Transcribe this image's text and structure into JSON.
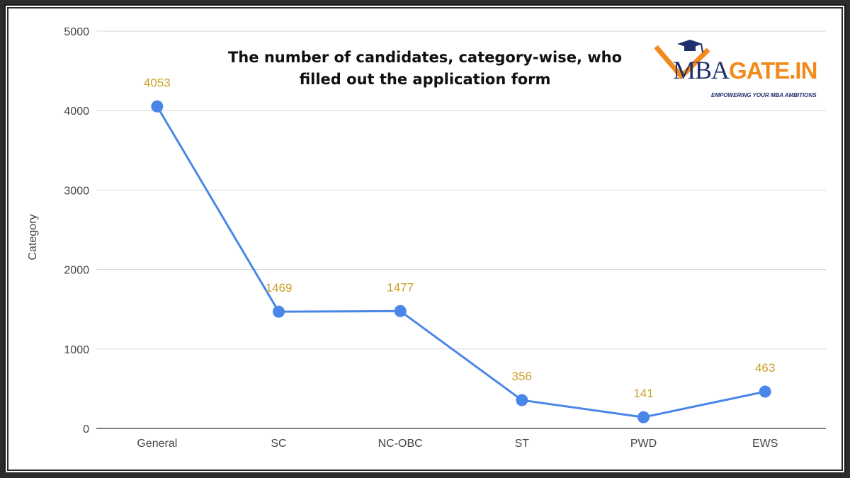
{
  "chart_data": {
    "type": "line",
    "title_line1": "The number of candidates, category-wise, who",
    "title_line2": "filled out the application form",
    "ylabel": "Category",
    "xlabel": "",
    "categories": [
      "General",
      "SC",
      "NC-OBC",
      "ST",
      "PWD",
      "EWS"
    ],
    "values": [
      4053,
      1469,
      1477,
      356,
      141,
      463
    ],
    "data_labels": [
      "4053",
      "1469",
      "1477",
      "356",
      "141",
      "463"
    ],
    "ylim": [
      0,
      5000
    ],
    "yticks": [
      0,
      1000,
      2000,
      3000,
      4000,
      5000
    ],
    "ytick_labels": [
      "0",
      "1000",
      "2000",
      "3000",
      "4000",
      "5000"
    ],
    "grid": true,
    "line_color": "#4a86e8",
    "label_color": "#c9a227"
  },
  "logo": {
    "mba": "MBA",
    "gate": "GATE.IN",
    "tagline": "EMPOWERING YOUR MBA AMBITIONS",
    "primary_color": "#1f2f6b",
    "accent_color": "#f28a1b"
  }
}
